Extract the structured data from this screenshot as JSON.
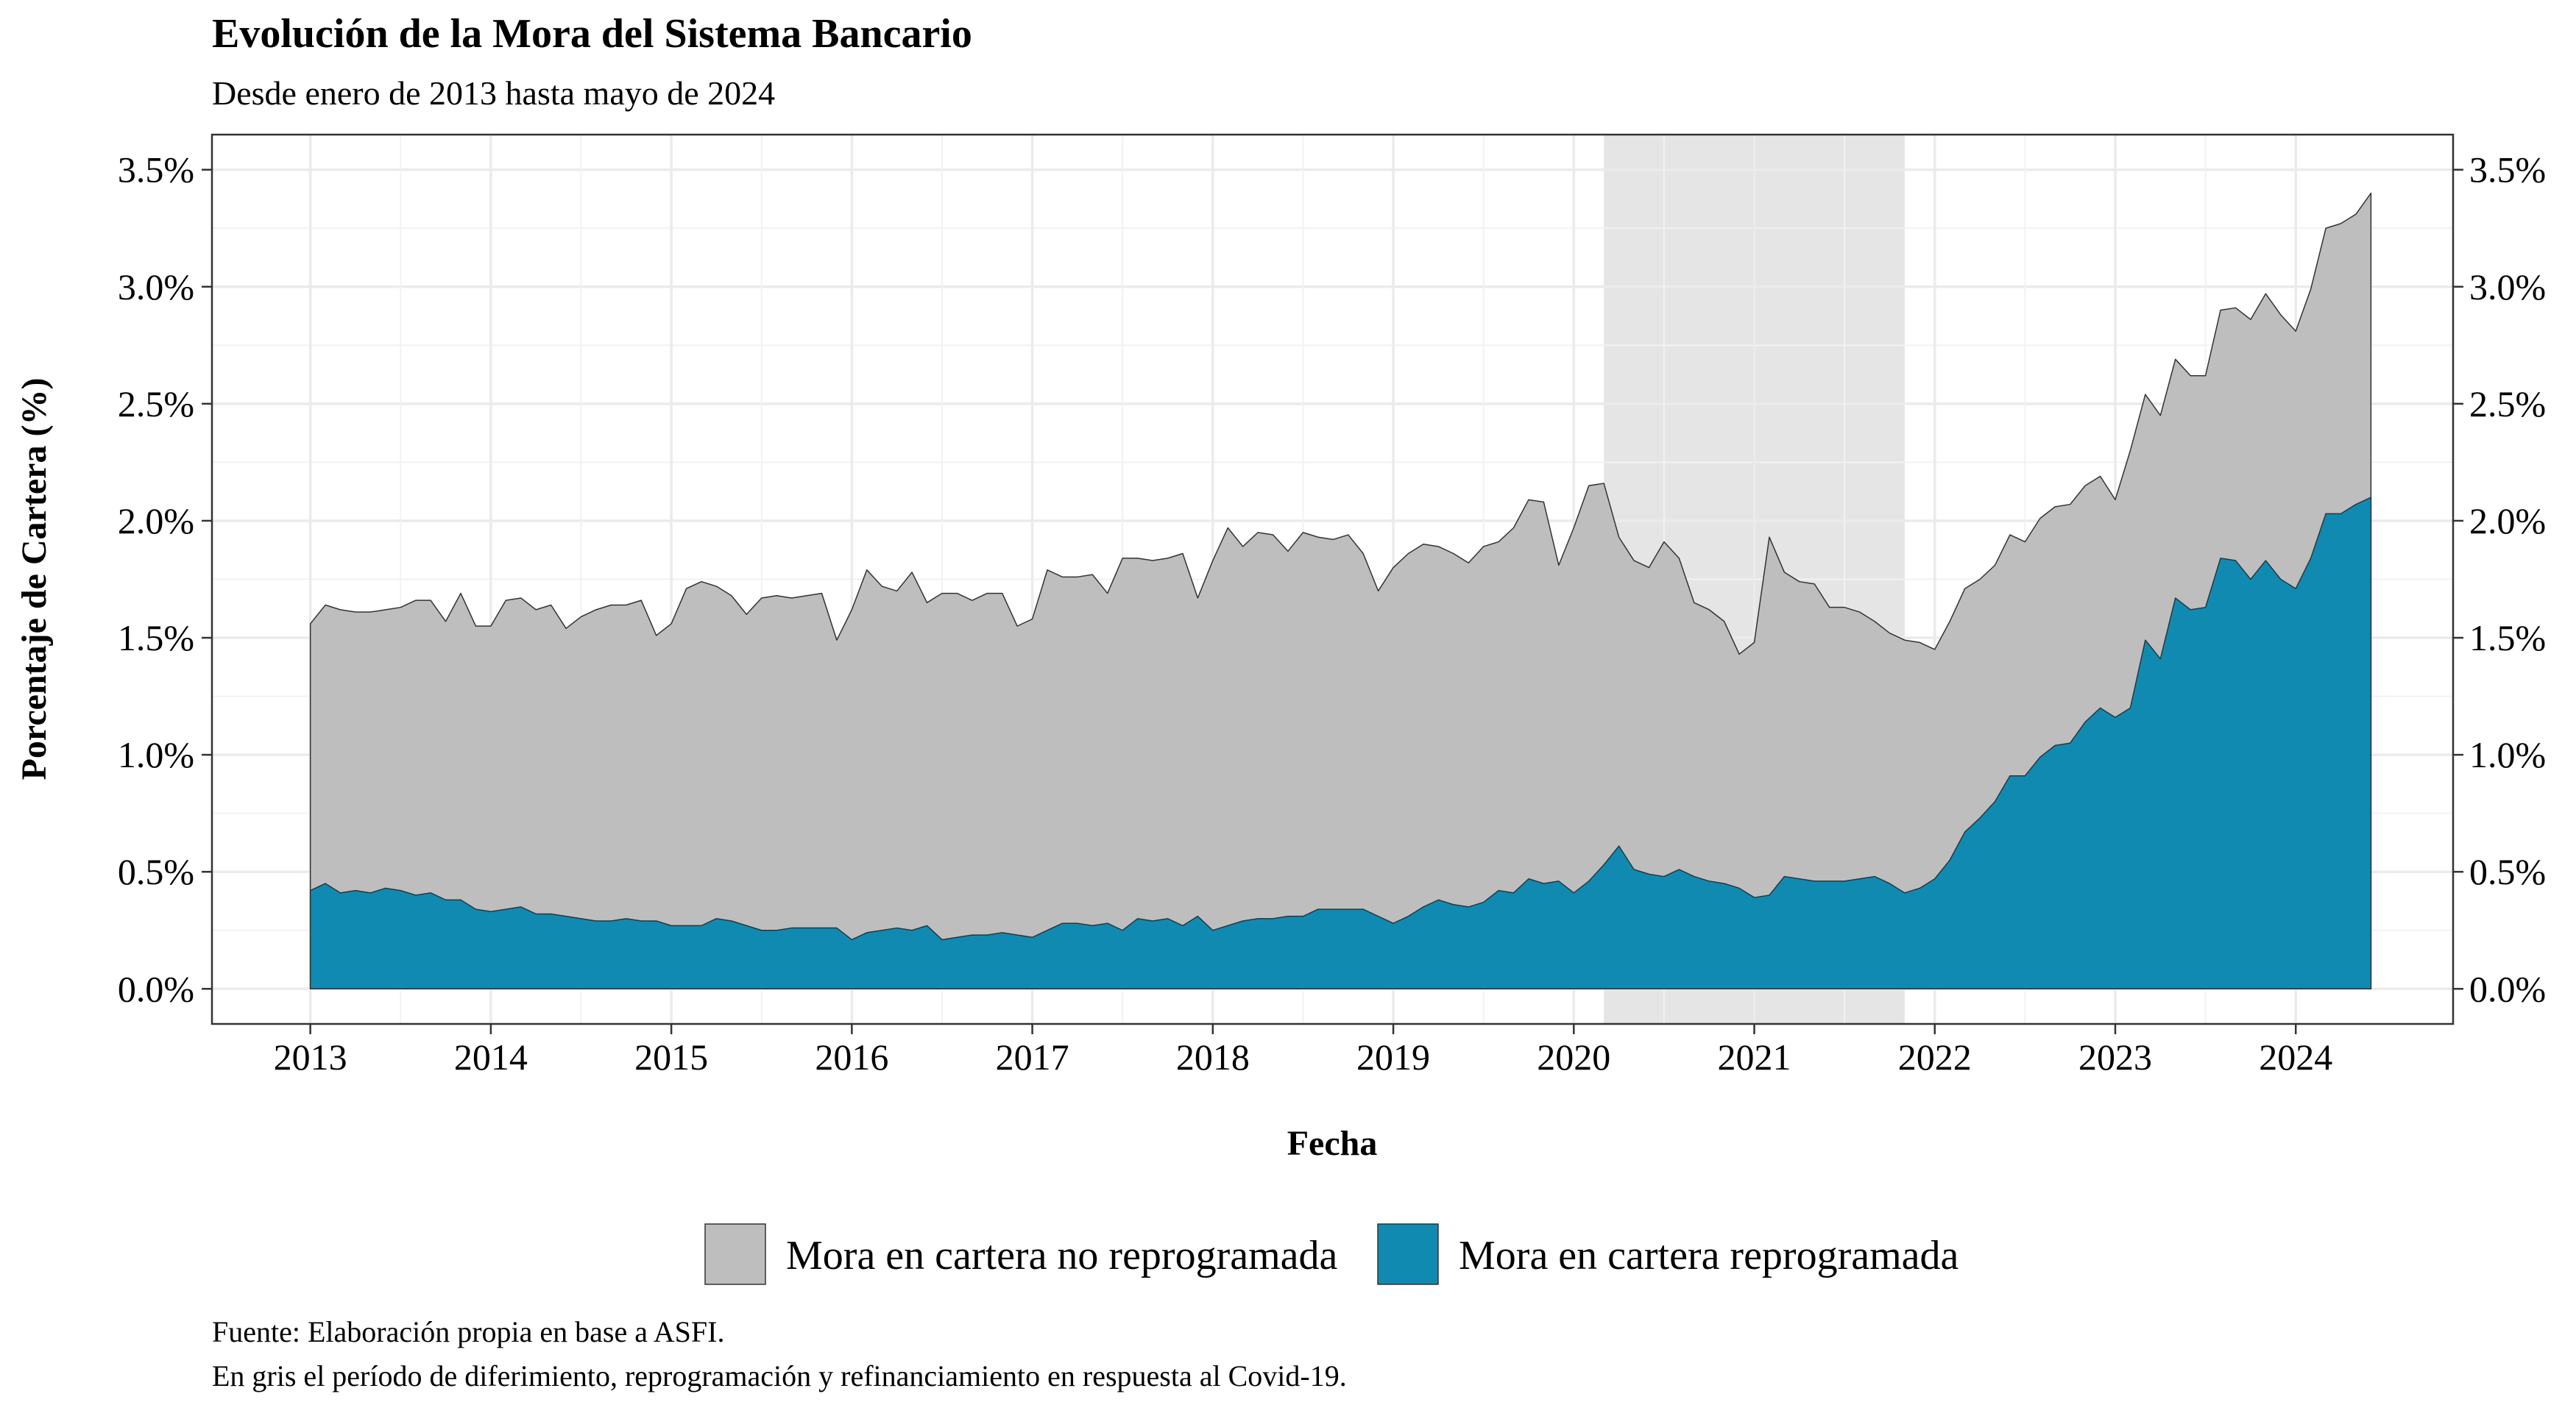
{
  "chart_data": {
    "type": "area",
    "stacked": true,
    "title": "Evolución de la Mora del Sistema Bancario",
    "subtitle": "Desde enero de 2013 hasta mayo de 2024",
    "xlabel": "Fecha",
    "ylabel": "Porcentaje de Cartera (%)",
    "xlim": [
      "2012-06-15",
      "2024-11-15"
    ],
    "ylim": [
      -0.15,
      3.65
    ],
    "x_ticks": [
      "2013",
      "2014",
      "2015",
      "2016",
      "2017",
      "2018",
      "2019",
      "2020",
      "2021",
      "2022",
      "2023",
      "2024"
    ],
    "y_ticks": [
      0.0,
      0.5,
      1.0,
      1.5,
      2.0,
      2.5,
      3.0,
      3.5
    ],
    "y_tick_labels": [
      "0.0%",
      "0.5%",
      "1.0%",
      "1.5%",
      "2.0%",
      "2.5%",
      "3.0%",
      "3.5%"
    ],
    "secondary_y_axis": true,
    "grid": true,
    "legend_position": "bottom",
    "shaded_period": {
      "start": "2020-03-01",
      "end": "2021-11-01",
      "color": "#e5e5e5"
    },
    "start": "2013-01",
    "end": "2024-05",
    "frequency": "monthly",
    "series": [
      {
        "name": "Mora en cartera no reprogramada",
        "color": "#bebebe",
        "total_values": [
          1.56,
          1.64,
          1.62,
          1.61,
          1.61,
          1.62,
          1.63,
          1.66,
          1.66,
          1.57,
          1.69,
          1.55,
          1.55,
          1.66,
          1.67,
          1.62,
          1.64,
          1.54,
          1.59,
          1.62,
          1.64,
          1.64,
          1.66,
          1.51,
          1.56,
          1.71,
          1.74,
          1.72,
          1.68,
          1.6,
          1.67,
          1.68,
          1.67,
          1.68,
          1.69,
          1.49,
          1.62,
          1.79,
          1.72,
          1.7,
          1.78,
          1.65,
          1.69,
          1.69,
          1.66,
          1.69,
          1.69,
          1.55,
          1.58,
          1.79,
          1.76,
          1.76,
          1.77,
          1.69,
          1.84,
          1.84,
          1.83,
          1.84,
          1.86,
          1.67,
          1.83,
          1.97,
          1.89,
          1.95,
          1.94,
          1.87,
          1.95,
          1.93,
          1.92,
          1.94,
          1.86,
          1.7,
          1.8,
          1.86,
          1.9,
          1.89,
          1.86,
          1.82,
          1.89,
          1.91,
          1.97,
          2.09,
          2.08,
          1.81,
          1.97,
          2.15,
          2.16,
          1.93,
          1.83,
          1.8,
          1.91,
          1.84,
          1.65,
          1.62,
          1.57,
          1.43,
          1.48,
          1.93,
          1.78,
          1.74,
          1.73,
          1.63,
          1.63,
          1.61,
          1.57,
          1.52,
          1.49,
          1.48,
          1.45,
          1.57,
          1.71,
          1.75,
          1.81,
          1.94,
          1.91,
          2.01,
          2.06,
          2.07,
          2.15,
          2.19,
          2.09,
          2.3,
          2.54,
          2.45,
          2.69,
          2.62,
          2.62,
          2.9,
          2.91,
          2.86,
          2.97,
          2.88,
          2.81,
          2.99,
          3.25,
          3.27,
          3.31,
          3.4
        ]
      },
      {
        "name": "Mora en cartera reprogramada",
        "color": "#118ab2",
        "values": [
          0.42,
          0.45,
          0.41,
          0.42,
          0.41,
          0.43,
          0.42,
          0.4,
          0.41,
          0.38,
          0.38,
          0.34,
          0.33,
          0.34,
          0.35,
          0.32,
          0.32,
          0.31,
          0.3,
          0.29,
          0.29,
          0.3,
          0.29,
          0.29,
          0.27,
          0.27,
          0.27,
          0.3,
          0.29,
          0.27,
          0.25,
          0.25,
          0.26,
          0.26,
          0.26,
          0.26,
          0.21,
          0.24,
          0.25,
          0.26,
          0.25,
          0.27,
          0.21,
          0.22,
          0.23,
          0.23,
          0.24,
          0.23,
          0.22,
          0.25,
          0.28,
          0.28,
          0.27,
          0.28,
          0.25,
          0.3,
          0.29,
          0.3,
          0.27,
          0.31,
          0.25,
          0.27,
          0.29,
          0.3,
          0.3,
          0.31,
          0.31,
          0.34,
          0.34,
          0.34,
          0.34,
          0.31,
          0.28,
          0.31,
          0.35,
          0.38,
          0.36,
          0.35,
          0.37,
          0.42,
          0.41,
          0.47,
          0.45,
          0.46,
          0.41,
          0.46,
          0.53,
          0.61,
          0.51,
          0.49,
          0.48,
          0.51,
          0.48,
          0.46,
          0.45,
          0.43,
          0.39,
          0.4,
          0.48,
          0.47,
          0.46,
          0.46,
          0.46,
          0.47,
          0.48,
          0.45,
          0.41,
          0.43,
          0.47,
          0.55,
          0.67,
          0.73,
          0.8,
          0.91,
          0.91,
          0.99,
          1.04,
          1.05,
          1.14,
          1.2,
          1.16,
          1.2,
          1.49,
          1.41,
          1.67,
          1.62,
          1.63,
          1.84,
          1.83,
          1.75,
          1.83,
          1.75,
          1.71,
          1.84,
          2.03,
          2.03,
          2.07,
          2.1
        ]
      }
    ],
    "caption": [
      "Fuente: Elaboración propia en base a ASFI.",
      "En gris el período de diferimiento, reprogramación y refinanciamiento en respuesta al Covid-19."
    ]
  }
}
